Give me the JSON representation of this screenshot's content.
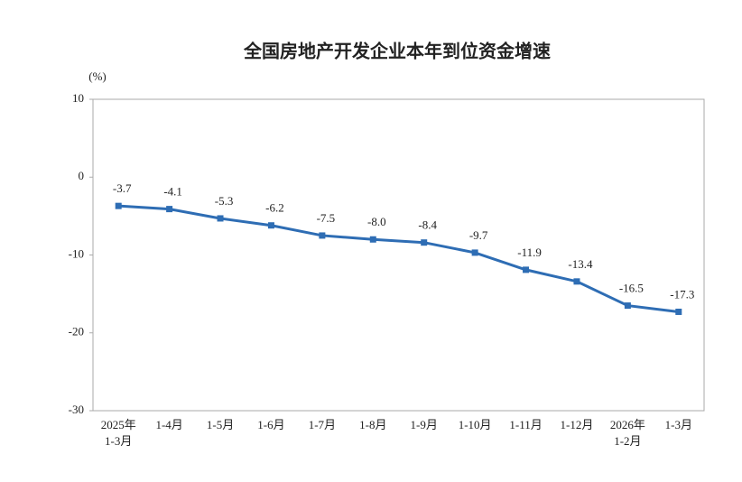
{
  "chart_data": {
    "type": "line",
    "title": "全国房地产开发企业本年到位资金增速",
    "y_unit": "(%)",
    "categories": [
      "2025年\n1-3月",
      "1-4月",
      "1-5月",
      "1-6月",
      "1-7月",
      "1-8月",
      "1-9月",
      "1-10月",
      "1-11月",
      "1-12月",
      "2026年\n1-2月",
      "1-3月"
    ],
    "values": [
      -3.7,
      -4.1,
      -5.3,
      -6.2,
      -7.5,
      -8.0,
      -8.4,
      -9.7,
      -11.9,
      -13.4,
      -16.5,
      -17.3
    ],
    "value_labels": [
      "-3.7",
      "-4.1",
      "-5.3",
      "-6.2",
      "-7.5",
      "-8.0",
      "-8.4",
      "-9.7",
      "-11.9",
      "-13.4",
      "-16.5",
      "-17.3"
    ],
    "color": "#2e6db4",
    "ylim": [
      -30,
      10
    ],
    "yticks": [
      10,
      0,
      -10,
      -20,
      -30
    ],
    "grid": false
  }
}
